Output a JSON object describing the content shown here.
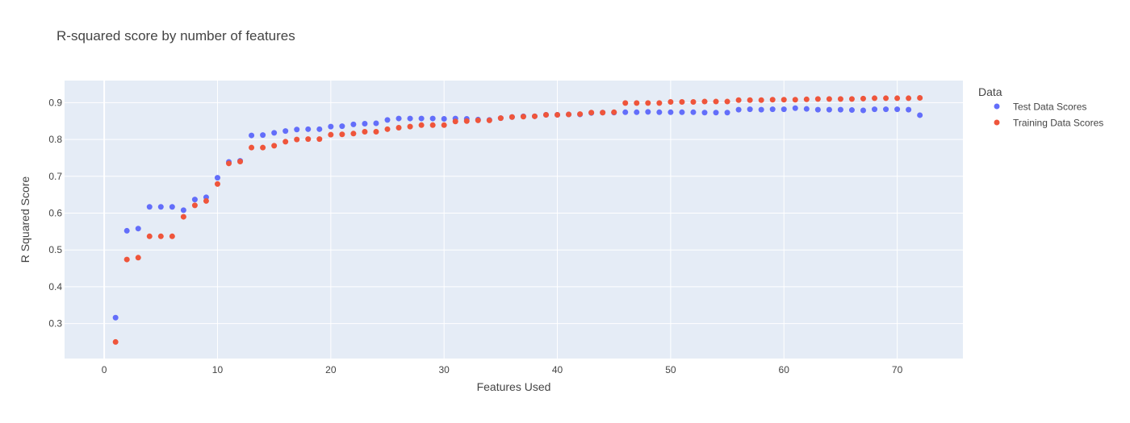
{
  "chart_data": {
    "type": "scatter",
    "title": "R-squared score by number of features",
    "xlabel": "Features Used",
    "ylabel": "R Squared Score",
    "xlim": [
      -3.5,
      75.8
    ],
    "ylim": [
      0.205,
      0.96
    ],
    "xticks": [
      0,
      10,
      20,
      30,
      40,
      50,
      60,
      70
    ],
    "yticks": [
      0.3,
      0.4,
      0.5,
      0.6,
      0.7,
      0.8,
      0.9
    ],
    "grid": true,
    "legend_title": "Data",
    "legend_position": "right",
    "colors": {
      "plot_bg": "#E5ECF6",
      "grid": "#ffffff",
      "test": "#636EFA",
      "train": "#EF553B"
    },
    "x": [
      1,
      2,
      3,
      4,
      5,
      6,
      7,
      8,
      9,
      10,
      11,
      12,
      13,
      14,
      15,
      16,
      17,
      18,
      19,
      20,
      21,
      22,
      23,
      24,
      25,
      26,
      27,
      28,
      29,
      30,
      31,
      32,
      33,
      34,
      35,
      36,
      37,
      38,
      39,
      40,
      41,
      42,
      43,
      44,
      45,
      46,
      47,
      48,
      49,
      50,
      51,
      52,
      53,
      54,
      55,
      56,
      57,
      58,
      59,
      60,
      61,
      62,
      63,
      64,
      65,
      66,
      67,
      68,
      69,
      70,
      71,
      72
    ],
    "series": [
      {
        "name": "Test Data Scores",
        "color": "#636EFA",
        "values": [
          0.316,
          0.552,
          0.558,
          0.617,
          0.617,
          0.617,
          0.608,
          0.637,
          0.643,
          0.696,
          0.739,
          0.742,
          0.811,
          0.812,
          0.818,
          0.823,
          0.827,
          0.828,
          0.828,
          0.835,
          0.836,
          0.841,
          0.843,
          0.844,
          0.853,
          0.857,
          0.857,
          0.857,
          0.857,
          0.856,
          0.857,
          0.856,
          0.854,
          0.853,
          0.858,
          0.861,
          0.863,
          0.863,
          0.867,
          0.867,
          0.868,
          0.868,
          0.872,
          0.873,
          0.873,
          0.874,
          0.874,
          0.875,
          0.874,
          0.874,
          0.874,
          0.874,
          0.873,
          0.873,
          0.873,
          0.881,
          0.882,
          0.881,
          0.882,
          0.882,
          0.885,
          0.883,
          0.881,
          0.881,
          0.881,
          0.88,
          0.879,
          0.882,
          0.882,
          0.882,
          0.881,
          0.866
        ]
      },
      {
        "name": "Training Data Scores",
        "color": "#EF553B",
        "values": [
          0.25,
          0.474,
          0.479,
          0.537,
          0.537,
          0.537,
          0.59,
          0.621,
          0.633,
          0.679,
          0.735,
          0.74,
          0.778,
          0.778,
          0.783,
          0.794,
          0.8,
          0.801,
          0.801,
          0.813,
          0.814,
          0.816,
          0.821,
          0.821,
          0.828,
          0.832,
          0.835,
          0.839,
          0.839,
          0.839,
          0.849,
          0.85,
          0.852,
          0.852,
          0.858,
          0.861,
          0.862,
          0.863,
          0.867,
          0.867,
          0.868,
          0.869,
          0.873,
          0.873,
          0.874,
          0.899,
          0.899,
          0.899,
          0.899,
          0.902,
          0.902,
          0.902,
          0.903,
          0.903,
          0.903,
          0.907,
          0.907,
          0.907,
          0.908,
          0.908,
          0.908,
          0.909,
          0.91,
          0.91,
          0.91,
          0.91,
          0.911,
          0.912,
          0.912,
          0.912,
          0.912,
          0.913
        ]
      }
    ]
  }
}
